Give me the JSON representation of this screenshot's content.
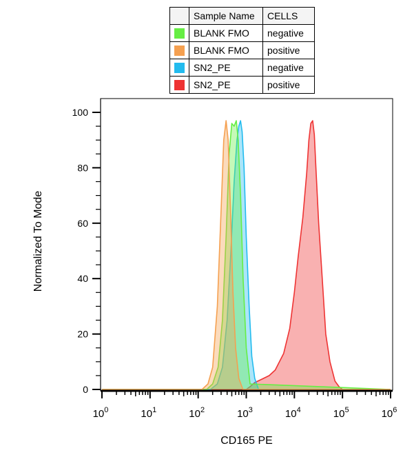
{
  "legend": {
    "headers": [
      "",
      "Sample Name",
      "CELLS"
    ],
    "rows": [
      {
        "sample": "BLANK FMO",
        "cells": "negative",
        "color": "#66ee44"
      },
      {
        "sample": "BLANK FMO",
        "cells": "positive",
        "color": "#f5a050"
      },
      {
        "sample": "SN2_PE",
        "cells": "negative",
        "color": "#22bbee"
      },
      {
        "sample": "SN2_PE",
        "cells": "positive",
        "color": "#ee3333"
      }
    ]
  },
  "chart_data": {
    "type": "area",
    "xlabel": "CD165 PE",
    "ylabel": "Normalized To Mode",
    "x_scale": "log",
    "xlim": [
      1,
      1000000
    ],
    "ylim": [
      0,
      100
    ],
    "x_ticks": [
      {
        "base": "10",
        "exp": "0"
      },
      {
        "base": "10",
        "exp": "1"
      },
      {
        "base": "10",
        "exp": "2"
      },
      {
        "base": "10",
        "exp": "3"
      },
      {
        "base": "10",
        "exp": "4"
      },
      {
        "base": "10",
        "exp": "5"
      },
      {
        "base": "10",
        "exp": "6"
      }
    ],
    "y_ticks": [
      "0",
      "20",
      "40",
      "60",
      "80",
      "100"
    ],
    "y_tick_values": [
      0,
      20,
      40,
      60,
      80,
      100
    ],
    "series": [
      {
        "name": "SN2_PE positive",
        "color": "#ee3333",
        "x": [
          1,
          1000,
          1200,
          1500,
          2000,
          3000,
          4000,
          6000,
          8000,
          10000,
          12000,
          15000,
          18000,
          20000,
          22000,
          24000,
          26000,
          28000,
          32000,
          38000,
          45000,
          55000,
          70000,
          85000,
          100000,
          1000000
        ],
        "y": [
          0,
          0,
          1,
          2.5,
          3.5,
          5,
          7,
          13,
          22,
          35,
          48,
          62,
          78,
          90,
          96,
          97,
          92,
          80,
          60,
          40,
          20,
          10,
          3,
          1,
          0,
          0
        ]
      },
      {
        "name": "SN2_PE negative",
        "color": "#22bbee",
        "x": [
          1,
          180,
          250,
          320,
          400,
          480,
          560,
          640,
          700,
          760,
          820,
          900,
          1000,
          1150,
          1300,
          1500,
          1800,
          1000000
        ],
        "y": [
          0,
          0,
          2,
          8,
          25,
          50,
          75,
          90,
          95,
          97,
          93,
          80,
          55,
          30,
          12,
          4,
          0,
          0
        ]
      },
      {
        "name": "BLANK FMO negative",
        "color": "#66ee44",
        "x": [
          1,
          150,
          200,
          260,
          320,
          380,
          440,
          500,
          560,
          620,
          680,
          760,
          860,
          1000,
          1200,
          1000000
        ],
        "y": [
          0,
          0,
          2,
          8,
          25,
          55,
          85,
          96,
          95,
          97,
          90,
          70,
          40,
          15,
          2,
          0
        ]
      },
      {
        "name": "BLANK FMO positive",
        "color": "#f5a050",
        "x": [
          1,
          120,
          160,
          200,
          250,
          300,
          340,
          380,
          420,
          470,
          530,
          600,
          700,
          850,
          1000000
        ],
        "y": [
          0,
          0,
          2,
          8,
          30,
          65,
          90,
          97,
          90,
          65,
          35,
          15,
          4,
          0,
          0
        ]
      }
    ]
  }
}
